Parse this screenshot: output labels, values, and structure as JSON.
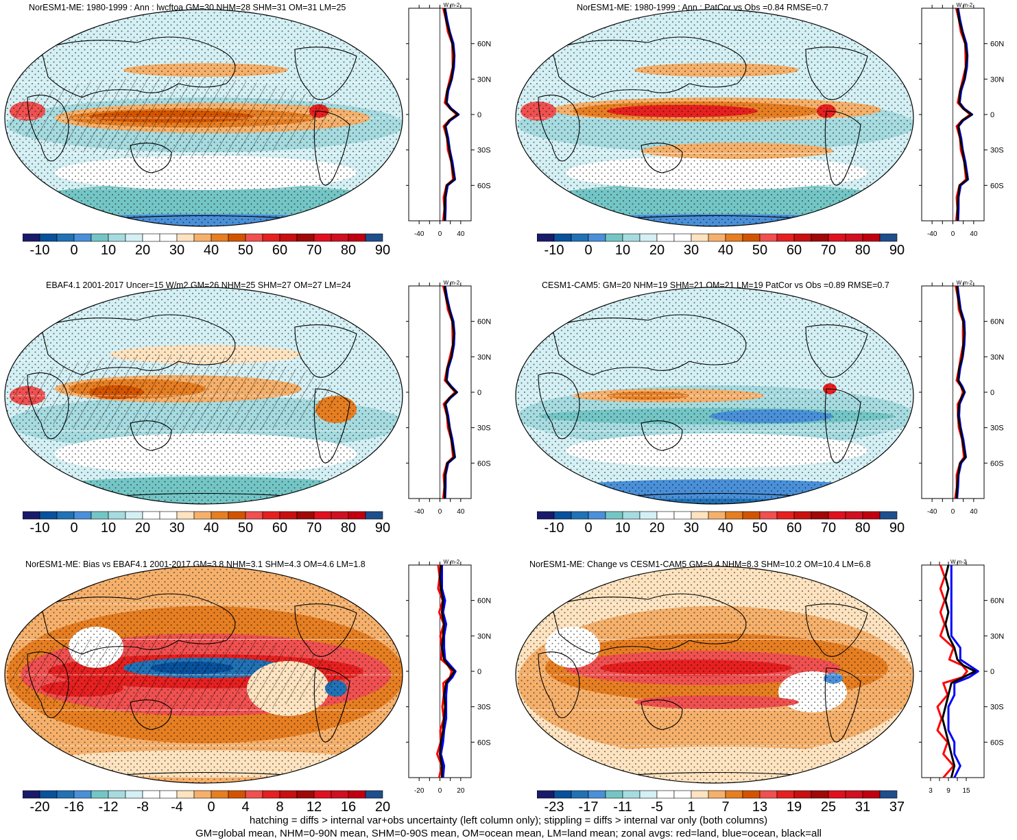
{
  "panels": [
    {
      "title": "NorESM1-ME: 1980-1999 : Ann : lwcftoa GM=30 NHM=28 SHM=31 OM=31 LM=25",
      "cbar_labels": [
        "-10",
        "0",
        "10",
        "20",
        "30",
        "40",
        "50",
        "60",
        "70",
        "80",
        "90"
      ],
      "profile_xlabels": [
        "-40",
        "0",
        "40"
      ],
      "profile_unit": "W m-2",
      "style": "clim",
      "hatch": true
    },
    {
      "title": "NorESM1-ME: 1980-1999 : Ann : PatCor vs Obs =0.84 RMSE=0.7",
      "cbar_labels": [
        "-10",
        "0",
        "10",
        "20",
        "30",
        "40",
        "50",
        "60",
        "70",
        "80",
        "90"
      ],
      "profile_xlabels": [
        "-40",
        "0",
        "40"
      ],
      "profile_unit": "W m-2",
      "style": "clim2",
      "hatch": false
    },
    {
      "title": "EBAF4.1 2001-2017 Uncer=15 W/m2 GM=26 NHM=25 SHM=27 OM=27 LM=24",
      "cbar_labels": [
        "-10",
        "0",
        "10",
        "20",
        "30",
        "40",
        "50",
        "60",
        "70",
        "80",
        "90"
      ],
      "profile_xlabels": [
        "-40",
        "0",
        "40"
      ],
      "profile_unit": "W m-2",
      "style": "obs",
      "hatch": true
    },
    {
      "title": "CESM1-CAM5: GM=20 NHM=19 SHM=21 OM=21 LM=19 PatCor vs Obs =0.89 RMSE=0.7",
      "cbar_labels": [
        "-10",
        "0",
        "10",
        "20",
        "30",
        "40",
        "50",
        "60",
        "70",
        "80",
        "90"
      ],
      "profile_xlabels": [
        "-40",
        "0",
        "40"
      ],
      "profile_unit": "W m-2",
      "style": "cesm",
      "hatch": false
    },
    {
      "title": "NorESM1-ME: Bias vs EBAF4.1 2001-2017 GM=3.8 NHM=3.1 SHM=4.3 OM=4.6 LM=1.8",
      "cbar_labels": [
        "-20",
        "-16",
        "-12",
        "-8",
        "-4",
        "0",
        "4",
        "8",
        "12",
        "16",
        "20"
      ],
      "profile_xlabels": [
        "-20",
        "0",
        "20"
      ],
      "profile_unit": "W m-2",
      "style": "bias",
      "hatch": true
    },
    {
      "title": "NorESM1-ME: Change vs CESM1-CAM5 GM=9.4 NHM=8.3 SHM=10.2 OM=10.4 LM=6.8",
      "cbar_labels": [
        "-23",
        "-17",
        "-11",
        "-5",
        "1",
        "7",
        "13",
        "19",
        "25",
        "31",
        "37"
      ],
      "profile_xlabels": [
        "3",
        "9",
        "15"
      ],
      "profile_unit": "W m-2",
      "style": "change",
      "hatch": false
    }
  ],
  "lat_labels": [
    "60N",
    "30N",
    "0",
    "30S",
    "60S"
  ],
  "colors": {
    "palette": [
      "#1a1a6b",
      "#08519c",
      "#2171b5",
      "#4a90d9",
      "#74c6c6",
      "#a6dbe0",
      "#d4f0f4",
      "#ffffff",
      "#ffffff",
      "#fde3c0",
      "#f5b06b",
      "#e67e22",
      "#d35400",
      "#f05050",
      "#e62020",
      "#c81010",
      "#a00808",
      "#e01020",
      "#d01020",
      "#c00010",
      "#1f4e8c"
    ],
    "profile_land": "#ff0000",
    "profile_ocean": "#0000ff",
    "profile_all": "#000000"
  },
  "footer": [
    "hatching = diffs > internal var+obs uncertainty (left column only); stippling = diffs > internal var only (both columns)",
    "GM=global mean, NHM=0-90N mean, SHM=0-90S mean, OM=ocean mean, LM=land mean; zonal avgs: red=land, blue=ocean, black=all"
  ]
}
